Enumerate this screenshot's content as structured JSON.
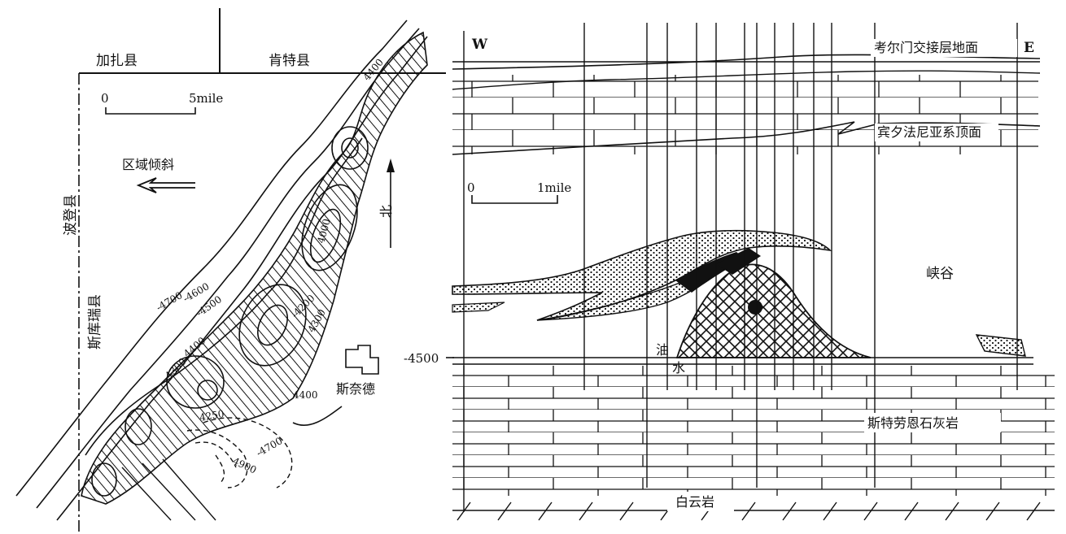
{
  "map": {
    "county_jiaza": "加扎县",
    "county_kente": "肯特县",
    "county_bodeng": "波登县",
    "county_sikurui": "斯库瑞县",
    "scale_zero": "0",
    "scale_max": "5mile",
    "regional_dip": "区域倾斜",
    "north": "北",
    "town": "斯奈德",
    "contours": {
      "c4400_top": "4400",
      "c4700": "-4700",
      "c4600": "-4600",
      "c4500": "-4500",
      "c4400_mid": "4400",
      "c4300": "-4300",
      "c4000": "4000",
      "c4200": "-4200",
      "c4300b": "4300",
      "c4400_low": "4400",
      "c4250": "4250",
      "c4700_low": "-4700",
      "c4900": "4900"
    }
  },
  "section": {
    "west": "W",
    "east": "E",
    "top_surface": "考尔门交接层地面",
    "penn_top": "宾夕法尼亚系顶面",
    "scale_zero": "0",
    "scale_max": "1mile",
    "canyon": "峡谷",
    "depth": "-4500",
    "oil": "油",
    "water": "水",
    "strawn": "斯特劳恩石灰岩",
    "dolomite": "白云岩"
  }
}
